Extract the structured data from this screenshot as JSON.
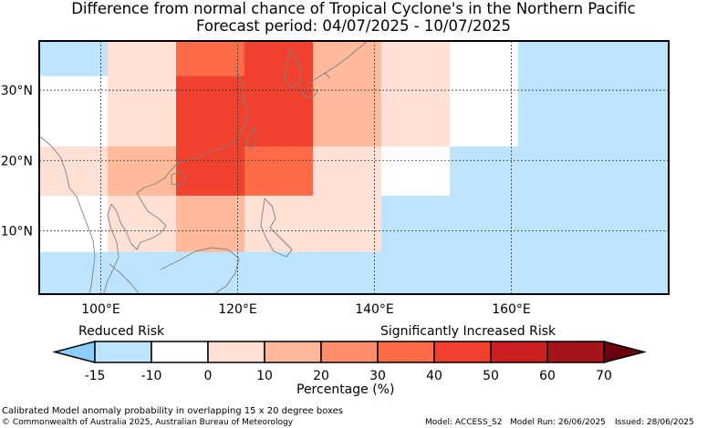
{
  "title": "Difference from normal chance of Tropical Cyclone's in the Northern Pacific",
  "subtitle": "Forecast period: 04/07/2025 - 10/07/2025",
  "map": {
    "lon_range": [
      91,
      183
    ],
    "lat_range": [
      1,
      37
    ],
    "lon_ticks": [
      "100°E",
      "120°E",
      "140°E",
      "160°E"
    ],
    "lat_ticks": [
      "30°N",
      "20°N",
      "10°N"
    ],
    "grid_lons": [
      100,
      120,
      140,
      160
    ],
    "grid_lats": [
      10,
      20,
      30
    ],
    "anomaly_cells": [
      {
        "lon0": 91,
        "lon1": 101,
        "lat0": 32,
        "lat1": 37,
        "value": -15
      },
      {
        "lon0": 101,
        "lon1": 111,
        "lat0": 32,
        "lat1": 37,
        "value": 0
      },
      {
        "lon0": 111,
        "lon1": 121,
        "lat0": 32,
        "lat1": 37,
        "value": 35
      },
      {
        "lon0": 121,
        "lon1": 131,
        "lat0": 32,
        "lat1": 37,
        "value": 45
      },
      {
        "lon0": 131,
        "lon1": 141,
        "lat0": 32,
        "lat1": 37,
        "value": 15
      },
      {
        "lon0": 141,
        "lon1": 151,
        "lat0": 32,
        "lat1": 37,
        "value": 0
      },
      {
        "lon0": 151,
        "lon1": 161,
        "lat0": 32,
        "lat1": 37,
        "value": -5
      },
      {
        "lon0": 161,
        "lon1": 183,
        "lat0": 32,
        "lat1": 37,
        "value": -15
      },
      {
        "lon0": 91,
        "lon1": 101,
        "lat0": 22,
        "lat1": 32,
        "value": -5
      },
      {
        "lon0": 101,
        "lon1": 111,
        "lat0": 22,
        "lat1": 32,
        "value": 5
      },
      {
        "lon0": 111,
        "lon1": 121,
        "lat0": 22,
        "lat1": 32,
        "value": 45
      },
      {
        "lon0": 121,
        "lon1": 131,
        "lat0": 22,
        "lat1": 32,
        "value": 45
      },
      {
        "lon0": 131,
        "lon1": 141,
        "lat0": 22,
        "lat1": 32,
        "value": 15
      },
      {
        "lon0": 141,
        "lon1": 151,
        "lat0": 22,
        "lat1": 32,
        "value": 0
      },
      {
        "lon0": 151,
        "lon1": 161,
        "lat0": 22,
        "lat1": 32,
        "value": -5
      },
      {
        "lon0": 161,
        "lon1": 183,
        "lat0": 22,
        "lat1": 32,
        "value": -15
      },
      {
        "lon0": 91,
        "lon1": 101,
        "lat0": 15,
        "lat1": 22,
        "value": 0
      },
      {
        "lon0": 101,
        "lon1": 111,
        "lat0": 15,
        "lat1": 22,
        "value": 15
      },
      {
        "lon0": 111,
        "lon1": 121,
        "lat0": 15,
        "lat1": 22,
        "value": 45
      },
      {
        "lon0": 121,
        "lon1": 131,
        "lat0": 15,
        "lat1": 22,
        "value": 35
      },
      {
        "lon0": 131,
        "lon1": 141,
        "lat0": 15,
        "lat1": 22,
        "value": 5
      },
      {
        "lon0": 141,
        "lon1": 151,
        "lat0": 15,
        "lat1": 22,
        "value": -5
      },
      {
        "lon0": 151,
        "lon1": 161,
        "lat0": 15,
        "lat1": 22,
        "value": -15
      },
      {
        "lon0": 161,
        "lon1": 183,
        "lat0": 15,
        "lat1": 22,
        "value": -15
      },
      {
        "lon0": 91,
        "lon1": 101,
        "lat0": 7,
        "lat1": 15,
        "value": -5
      },
      {
        "lon0": 101,
        "lon1": 111,
        "lat0": 7,
        "lat1": 15,
        "value": 0
      },
      {
        "lon0": 111,
        "lon1": 121,
        "lat0": 7,
        "lat1": 15,
        "value": 15
      },
      {
        "lon0": 121,
        "lon1": 131,
        "lat0": 7,
        "lat1": 15,
        "value": 5
      },
      {
        "lon0": 131,
        "lon1": 141,
        "lat0": 7,
        "lat1": 15,
        "value": 0
      },
      {
        "lon0": 141,
        "lon1": 151,
        "lat0": 7,
        "lat1": 15,
        "value": -15
      },
      {
        "lon0": 151,
        "lon1": 161,
        "lat0": 7,
        "lat1": 15,
        "value": -15
      },
      {
        "lon0": 161,
        "lon1": 183,
        "lat0": 7,
        "lat1": 15,
        "value": -15
      },
      {
        "lon0": 91,
        "lon1": 183,
        "lat0": 1,
        "lat1": 7,
        "value": -15
      }
    ]
  },
  "colorbar": {
    "bounds": [
      -15,
      -10,
      0,
      10,
      20,
      30,
      40,
      50,
      60,
      70
    ],
    "tick_labels": [
      "-15",
      "-10",
      "0",
      "10",
      "20",
      "30",
      "40",
      "50",
      "60",
      "70"
    ],
    "under_color": "#8ccfff",
    "over_color": "#6a000c",
    "colors": [
      "#bde4ff",
      "#ffffff",
      "#ffe0d4",
      "#ffb99b",
      "#ff8c6a",
      "#ff6a48",
      "#f0402e",
      "#cc1f1f",
      "#a51418"
    ],
    "label": "Percentage (%)",
    "reduced_label": "Reduced Risk",
    "increased_label": "Significantly Increased Risk"
  },
  "footer": {
    "line1": "Calibrated Model anomaly probability in overlapping 15 x 20 degree boxes",
    "line2": "© Commonwealth of Australia 2025, Australian Bureau of Meteorology",
    "model": "Model: ACCESS_S2",
    "run": "Model Run: 26/06/2025",
    "issued": "Issued: 28/06/2025"
  }
}
